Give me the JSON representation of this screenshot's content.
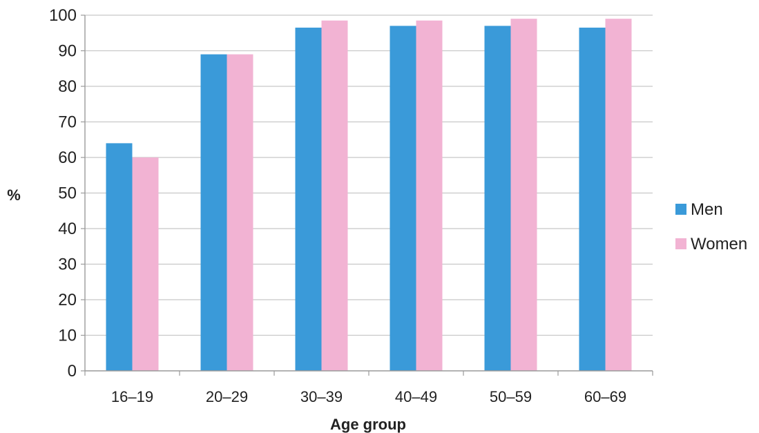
{
  "chart_data": {
    "type": "bar",
    "title": "",
    "xlabel": "Age group",
    "ylabel": "%",
    "ylim": [
      0,
      100
    ],
    "yticks": [
      0,
      10,
      20,
      30,
      40,
      50,
      60,
      70,
      80,
      90,
      100
    ],
    "grid": true,
    "legend_position": "right",
    "categories": [
      "16–19",
      "20–29",
      "30–39",
      "40–49",
      "50–59",
      "60–69"
    ],
    "series": [
      {
        "name": "Men",
        "color": "#3a9ad9",
        "values": [
          64,
          89,
          96.5,
          97,
          97,
          96.5
        ]
      },
      {
        "name": "Women",
        "color": "#f2b3d3",
        "values": [
          60,
          89,
          98.5,
          98.5,
          99,
          99
        ]
      }
    ]
  }
}
